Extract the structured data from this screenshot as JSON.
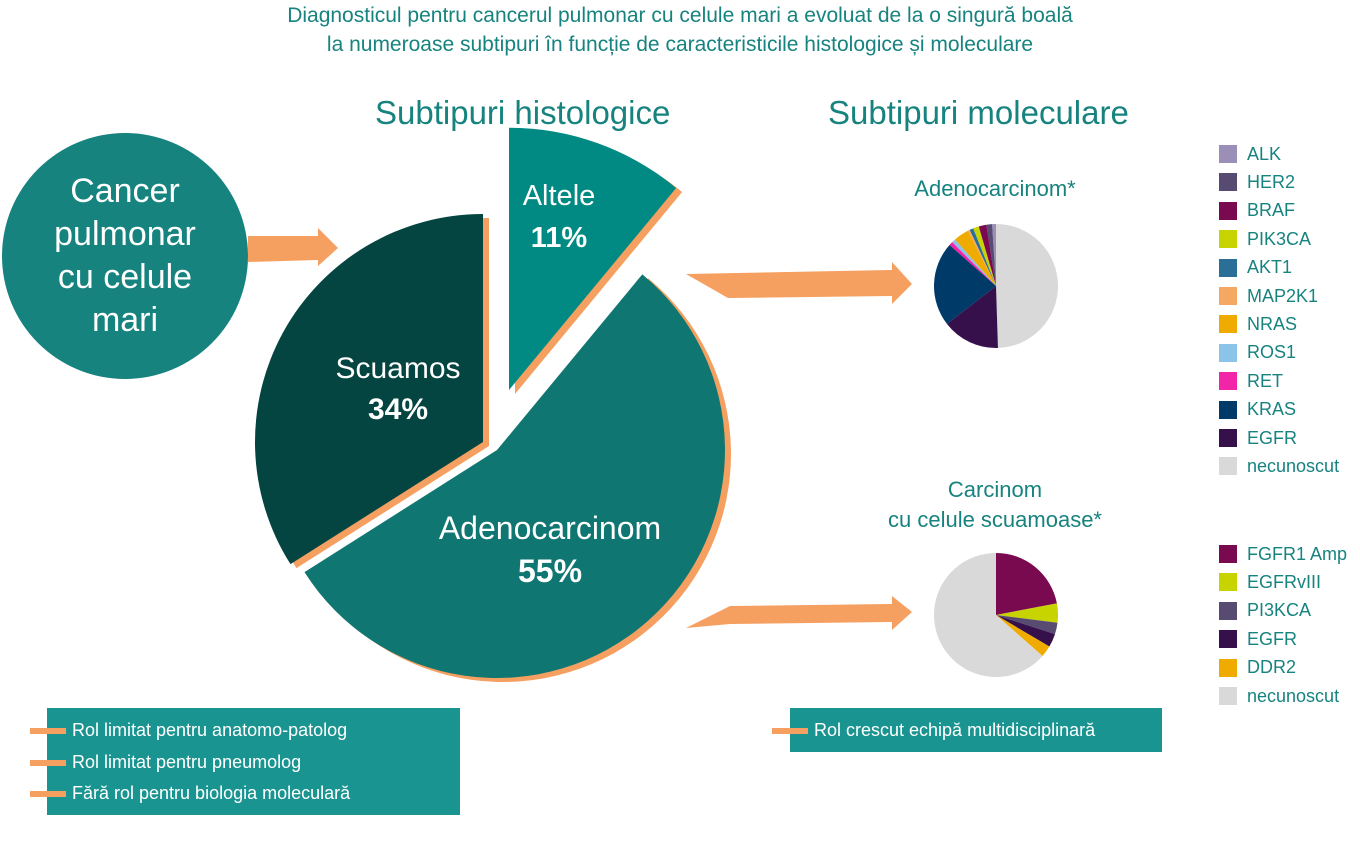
{
  "title": {
    "line1": "Diagnosticul pentru cancerul pulmonar cu celule mari a evoluat de la o singură boală",
    "line2": "la numeroase subtipuri în funcție de caracteristicile histologice și moleculare"
  },
  "headings": {
    "histologic": "Subtipuri histologice",
    "molecular": "Subtipuri moleculare"
  },
  "circle": {
    "lines": [
      "Cancer",
      "pulmonar",
      "cu celule",
      "mari"
    ]
  },
  "colors": {
    "teal": "#17837f",
    "dark_teal": "#054541",
    "adeno_fill": "#0f7672",
    "bright_teal": "#008a83",
    "orange": "#f5a060",
    "box_teal": "#1a9490"
  },
  "main_pie": {
    "slices": [
      {
        "label": "Adenocarcinom",
        "value_text": "55%"
      },
      {
        "label": "Scuamos",
        "value_text": "34%"
      },
      {
        "label": "Altele",
        "value_text": "11%"
      }
    ]
  },
  "adeno_title": "Adenocarcinom*",
  "squam_title": {
    "line1": "Carcinom",
    "line2": "cu celule scuamoase*"
  },
  "chart_data": [
    {
      "type": "pie",
      "title": "Subtipuri histologice",
      "categories": [
        "Adenocarcinom",
        "Scuamos",
        "Altele"
      ],
      "values": [
        55,
        34,
        11
      ],
      "colors": [
        "#0f7672",
        "#054541",
        "#008a83"
      ]
    },
    {
      "type": "pie",
      "title": "Adenocarcinom*",
      "categories": [
        "ALK",
        "HER2",
        "BRAF",
        "PIK3CA",
        "AKT1",
        "MAP2K1",
        "NRAS",
        "ROS1",
        "RET",
        "KRAS",
        "EGFR",
        "necunoscut"
      ],
      "values": [
        1,
        1.5,
        2,
        1.5,
        1,
        0.5,
        4,
        1,
        1,
        22,
        15,
        49.5
      ],
      "colors": [
        "#9b8fb8",
        "#574b72",
        "#7a0a4f",
        "#c8d400",
        "#2b6e97",
        "#f5a862",
        "#f0ab00",
        "#8cc3e8",
        "#f224a7",
        "#003a68",
        "#36104a",
        "#d9d9da"
      ],
      "legend": "right"
    },
    {
      "type": "pie",
      "title": "Carcinom cu celule scuamoase*",
      "categories": [
        "FGFR1 Amp",
        "EGFRvIII",
        "PI3KCA",
        "EGFR",
        "DDR2",
        "necunoscut"
      ],
      "values": [
        22,
        5,
        3,
        3.5,
        3,
        63.5
      ],
      "colors": [
        "#7a0a4f",
        "#c8d400",
        "#574b72",
        "#36104a",
        "#f0ab00",
        "#d9d9da"
      ],
      "legend": "right"
    }
  ],
  "adeno_legend": [
    {
      "label": "ALK",
      "color": "#9b8fb8"
    },
    {
      "label": "HER2",
      "color": "#574b72"
    },
    {
      "label": "BRAF",
      "color": "#7a0a4f"
    },
    {
      "label": "PIK3CA",
      "color": "#c8d400"
    },
    {
      "label": "AKT1",
      "color": "#2b6e97"
    },
    {
      "label": "MAP2K1",
      "color": "#f5a862"
    },
    {
      "label": "NRAS",
      "color": "#f0ab00"
    },
    {
      "label": "ROS1",
      "color": "#8cc3e8"
    },
    {
      "label": "RET",
      "color": "#f224a7"
    },
    {
      "label": "KRAS",
      "color": "#003a68"
    },
    {
      "label": "EGFR",
      "color": "#36104a"
    },
    {
      "label": "necunoscut",
      "color": "#d9d9da"
    }
  ],
  "squam_legend": [
    {
      "label": "FGFR1 Amp",
      "color": "#7a0a4f"
    },
    {
      "label": "EGFRvIII",
      "color": "#c8d400"
    },
    {
      "label": "PI3KCA",
      "color": "#574b72"
    },
    {
      "label": "EGFR",
      "color": "#36104a"
    },
    {
      "label": "DDR2",
      "color": "#f0ab00"
    },
    {
      "label": "necunoscut",
      "color": "#d9d9da"
    }
  ],
  "left_box": {
    "items": [
      "Rol limitat pentru anatomo-patolog",
      "Rol limitat pentru pneumolog",
      "Fără rol pentru biologia moleculară"
    ]
  },
  "right_box": {
    "items": [
      "Rol crescut echipă multidisciplinară"
    ]
  }
}
